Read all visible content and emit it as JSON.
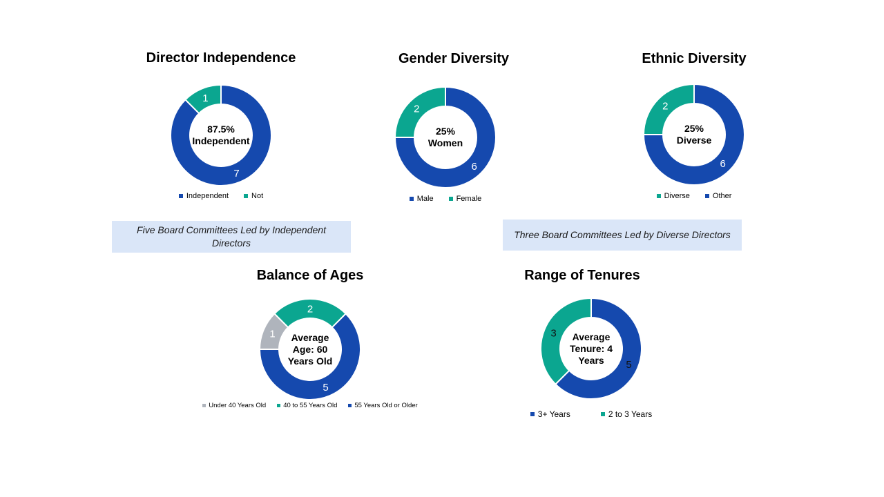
{
  "page": {
    "background": "#FFFFFF"
  },
  "palette": {
    "blue": "#1549AE",
    "teal": "#0BA690",
    "gray": "#AFB4BC",
    "callout_bg": "#DAE6F8"
  },
  "chart_data": [
    {
      "type": "pie",
      "variant": "donut",
      "title": "Director Independence",
      "center_lines": [
        "87.5%",
        "Independent"
      ],
      "rotation": 0,
      "legend_position": "bottom",
      "segments": [
        {
          "name": "Independent",
          "value": 7,
          "color": "#1549AE",
          "label": "7",
          "label_color": "#FFFFFF"
        },
        {
          "name": "Not",
          "value": 1,
          "color": "#0BA690",
          "label": "1",
          "label_color": "#FFFFFF"
        }
      ],
      "legend": [
        {
          "text": "Independent",
          "color": "#1549AE"
        },
        {
          "text": "Not",
          "color": "#0BA690"
        }
      ]
    },
    {
      "type": "pie",
      "variant": "donut",
      "title": "Gender Diversity",
      "center_lines": [
        "25%",
        "Women"
      ],
      "rotation": 0,
      "legend_position": "bottom",
      "segments": [
        {
          "name": "Male",
          "value": 6,
          "color": "#1549AE",
          "label": "6",
          "label_color": "#FFFFFF"
        },
        {
          "name": "Female",
          "value": 2,
          "color": "#0BA690",
          "label": "2",
          "label_color": "#FFFFFF"
        }
      ],
      "legend": [
        {
          "text": "Male",
          "color": "#1549AE"
        },
        {
          "text": "Female",
          "color": "#0BA690"
        }
      ]
    },
    {
      "type": "pie",
      "variant": "donut",
      "title": "Ethnic Diversity",
      "center_lines": [
        "25%",
        "Diverse"
      ],
      "rotation": 0,
      "legend_position": "bottom",
      "segments": [
        {
          "name": "Other",
          "value": 6,
          "color": "#1549AE",
          "label": "6",
          "label_color": "#FFFFFF"
        },
        {
          "name": "Diverse",
          "value": 2,
          "color": "#0BA690",
          "label": "2",
          "label_color": "#FFFFFF"
        }
      ],
      "legend": [
        {
          "text": "Diverse",
          "color": "#0BA690"
        },
        {
          "text": "Other",
          "color": "#1549AE"
        }
      ]
    },
    {
      "type": "pie",
      "variant": "donut",
      "title": "Balance of Ages",
      "center_lines": [
        "Average",
        "Age: 60",
        "Years Old"
      ],
      "rotation": 45,
      "legend_position": "bottom",
      "segments": [
        {
          "name": "55 Years Old or Older",
          "value": 5,
          "color": "#1549AE",
          "label": "5",
          "label_color": "#FFFFFF"
        },
        {
          "name": "Under 40 Years Old",
          "value": 1,
          "color": "#AFB4BC",
          "label": "1",
          "label_color": "#FFFFFF"
        },
        {
          "name": "40 to 55 Years Old",
          "value": 2,
          "color": "#0BA690",
          "label": "2",
          "label_color": "#FFFFFF"
        }
      ],
      "legend": [
        {
          "text": "Under 40 Years Old",
          "color": "#AFB4BC"
        },
        {
          "text": "40 to 55 Years Old",
          "color": "#0BA690"
        },
        {
          "text": "55 Years Old or Older",
          "color": "#1549AE"
        }
      ]
    },
    {
      "type": "pie",
      "variant": "donut",
      "title": "Range of Tenures",
      "center_lines": [
        "Average",
        "Tenure: 4",
        "Years"
      ],
      "rotation": 0,
      "legend_position": "bottom",
      "segments": [
        {
          "name": "3+ Years",
          "value": 5,
          "color": "#1549AE",
          "label": "5",
          "label_color": "#111111"
        },
        {
          "name": "2 to 3 Years",
          "value": 3,
          "color": "#0BA690",
          "label": "3",
          "label_color": "#111111"
        }
      ],
      "legend": [
        {
          "text": "3+ Years",
          "color": "#1549AE"
        },
        {
          "text": "2 to 3 Years",
          "color": "#0BA690"
        }
      ]
    }
  ],
  "callouts": [
    {
      "text": "Five Board Committees Led by Independent Directors",
      "background": "#DAE6F8"
    },
    {
      "text": "Three Board Committees Led by Diverse Directors",
      "background": "#DAE6F8"
    }
  ]
}
